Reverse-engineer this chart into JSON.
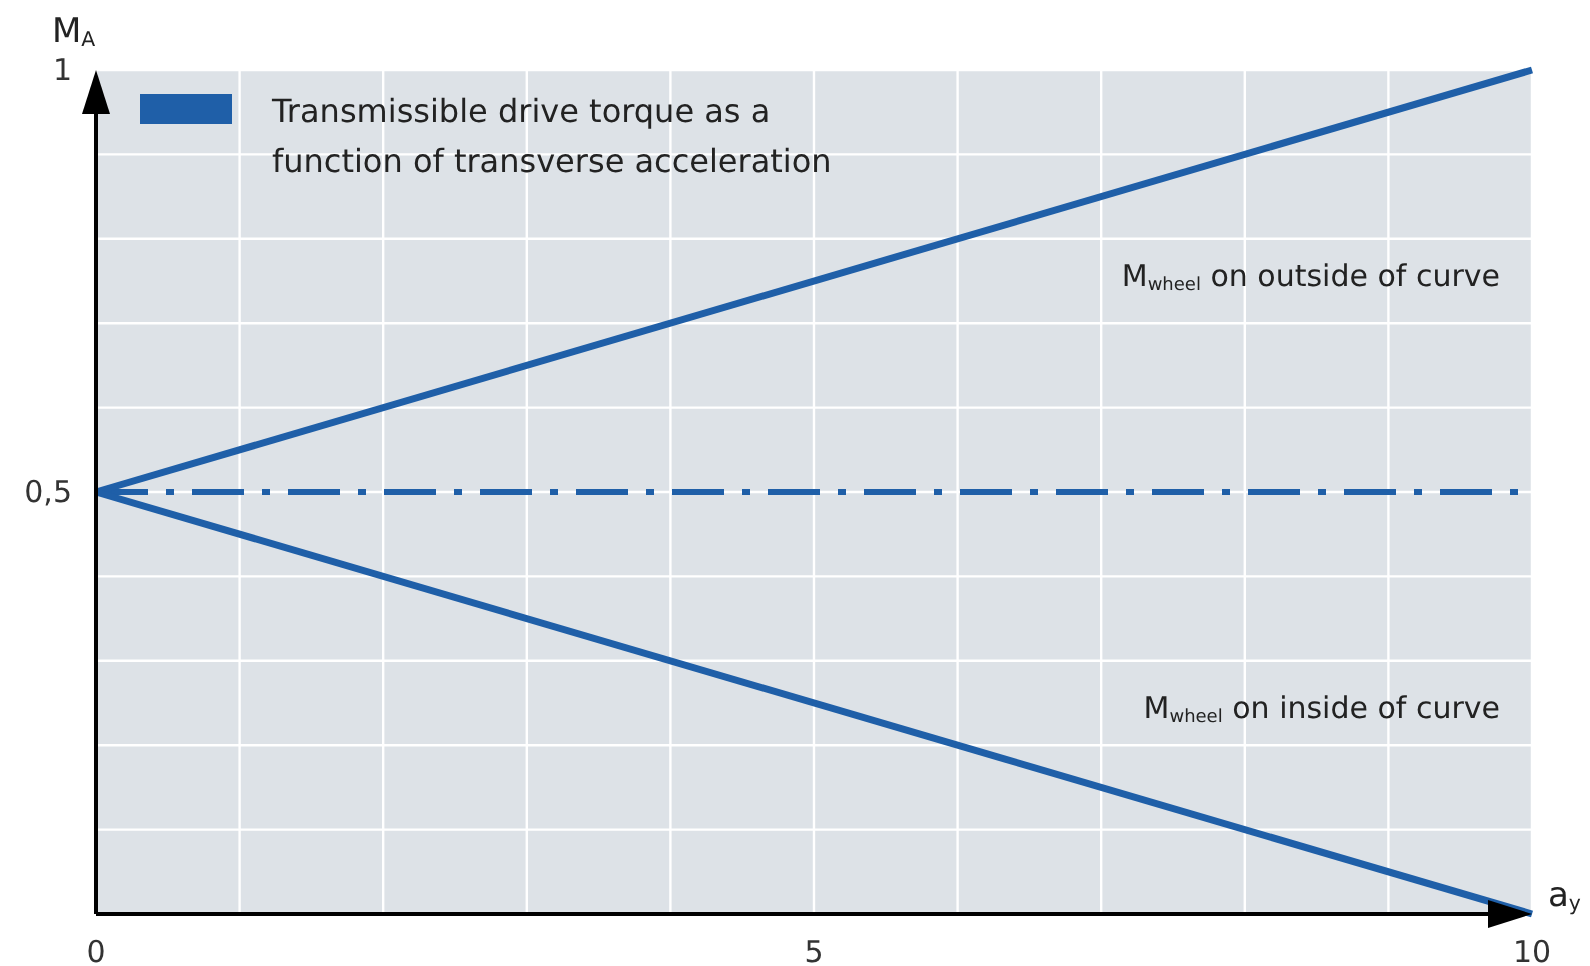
{
  "chart_data": {
    "type": "line",
    "xlabel": "a$_{y}$",
    "ylabel": "M$_{A}$",
    "legend": "top left",
    "grid": true,
    "line_style": "solid",
    "marker": "none",
    "x": [
      0,
      10
    ],
    "series": [
      {
        "name": "Transmissible drive torque as a function of transverse acceleration",
        "color": "#1f5fa8",
        "values": [
          0.5,
          1
        ]
      },
      {
        "color": "#1f5fa8",
        "values": [
          0.5,
          0
        ]
      }
    ],
    "annotations": [
      "M$_{wheel}$ on outside of curve",
      "M$_{wheel}$ on inside of curve"
    ],
    "xlim": [
      0,
      10
    ],
    "ylim": [
      0,
      1
    ],
    "xticks": [
      0,
      {
        "value": 1,
        "label": null
      },
      {
        "value": 2,
        "label": null
      },
      {
        "value": 3,
        "label": null
      },
      {
        "value": 4,
        "label": null
      },
      5,
      {
        "value": 6,
        "label": null
      },
      {
        "value": 7,
        "label": null
      },
      {
        "value": 8,
        "label": null
      },
      {
        "value": 9,
        "label": null
      },
      10
    ],
    "yticks": [
      {
        "value": 0,
        "label": null
      },
      {
        "value": 0.1,
        "label": null
      },
      {
        "value": 0.2,
        "label": null
      },
      {
        "value": 0.3,
        "label": null
      },
      {
        "value": 0.4,
        "label": null
      },
      {
        "value": 0.5,
        "label": "0,5"
      },
      {
        "value": 0.6,
        "label": null
      },
      {
        "value": 0.7,
        "label": null
      },
      {
        "value": 0.8,
        "label": null
      },
      {
        "value": 0.9,
        "label": null
      },
      1
    ],
    "ref_lines": [
      {
        "axis": "y",
        "value": 0.5,
        "color": "#1f5fa8",
        "line_style": "dashed"
      }
    ]
  }
}
